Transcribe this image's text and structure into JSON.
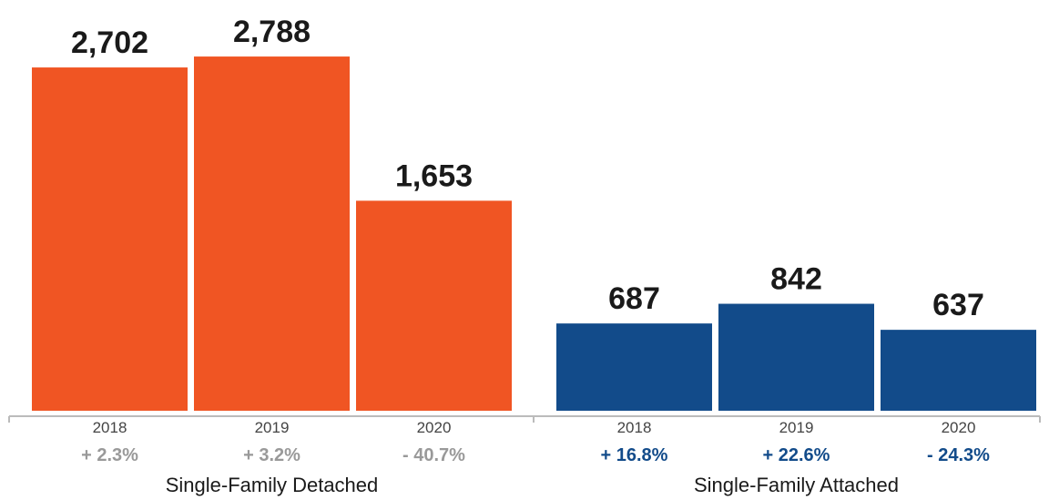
{
  "chart_data": {
    "type": "bar",
    "groups": [
      {
        "name": "Single-Family Detached",
        "color": "#f05523",
        "pct_color": "#999999",
        "bars": [
          {
            "year": "2018",
            "value": 2702,
            "value_label": "2,702",
            "change": "+ 2.3%"
          },
          {
            "year": "2019",
            "value": 2788,
            "value_label": "2,788",
            "change": "+ 3.2%"
          },
          {
            "year": "2020",
            "value": 1653,
            "value_label": "1,653",
            "change": "- 40.7%"
          }
        ]
      },
      {
        "name": "Single-Family Attached",
        "color": "#124b8a",
        "pct_color": "#124b8a",
        "bars": [
          {
            "year": "2018",
            "value": 687,
            "value_label": "687",
            "change": "+ 16.8%"
          },
          {
            "year": "2019",
            "value": 842,
            "value_label": "842",
            "change": "+ 22.6%"
          },
          {
            "year": "2020",
            "value": 637,
            "value_label": "637",
            "change": "- 24.3%"
          }
        ]
      }
    ]
  }
}
